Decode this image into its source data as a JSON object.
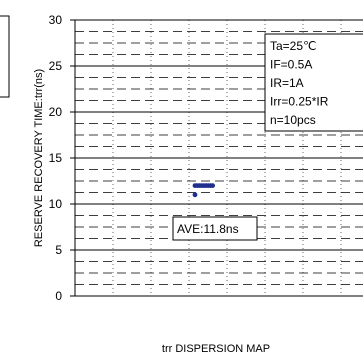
{
  "chart_data": {
    "type": "scatter",
    "title": "trr DISPERSION MAP",
    "ylabel": "RESERVE RECOVERY TIME:trr(ns)",
    "xlabel": "",
    "ylim": [
      0,
      30
    ],
    "yticks": [
      0,
      5,
      10,
      15,
      20,
      25,
      30
    ],
    "grid": true,
    "minor_grid_step": 1.25,
    "series": [
      {
        "values": [
          11.0,
          12.0,
          12.0,
          12.0,
          12.0,
          12.0,
          12.0,
          12.0,
          12.0,
          12.0
        ],
        "color": "#1f2f8f"
      }
    ],
    "annotation": "AVE:11.8ns",
    "conditions": [
      "Ta=25℃",
      "IF=0.5A",
      "IR=1A",
      "Irr=0.25*IR",
      "n=10pcs"
    ]
  }
}
